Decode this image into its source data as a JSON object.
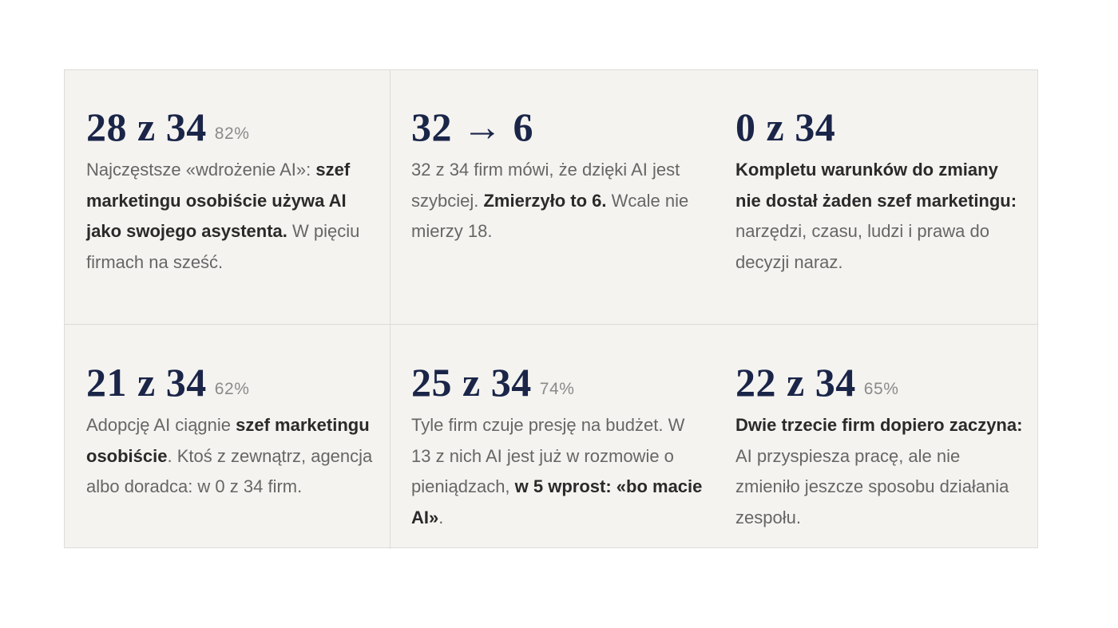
{
  "cards": [
    {
      "stat": "28 z 34",
      "percent": "82%",
      "t1": "Najczęstsze «wdrożenie AI»: ",
      "b1": "szef marketingu osobiście używa AI jako swojego asystenta.",
      "t2": " W pięciu firmach na sześć."
    },
    {
      "stat": "32 → 6",
      "percent": "",
      "t1": "32 z 34 firm mówi, że dzięki AI jest szybciej. ",
      "b1": "Zmierzyło to 6.",
      "t2": " Wcale nie mierzy 18."
    },
    {
      "stat": "0 z 34",
      "percent": "",
      "t1": "",
      "b1": "Kompletu warunków do zmiany nie dostał żaden szef marketingu:",
      "t2": " narzędzi, czasu, ludzi i prawa do decyzji naraz."
    },
    {
      "stat": "21 z 34",
      "percent": "62%",
      "t1": "Adopcję AI ciągnie ",
      "b1": "szef marketingu osobiście",
      "t2": ". Ktoś z zewnątrz, agencja albo doradca: w 0 z 34 firm."
    },
    {
      "stat": "25 z 34",
      "percent": "74%",
      "t1": "Tyle firm czuje presję na budżet. W 13 z nich AI jest już w rozmowie o pieniądzach, ",
      "b1": "w 5 wprost: «bo macie AI»",
      "t2": "."
    },
    {
      "stat": "22 z 34",
      "percent": "65%",
      "t1": "",
      "b1": "Dwie trzecie firm dopiero zaczyna:",
      "t2": " AI przyspiesza pracę, ale nie zmieniło jeszcze sposobu działania zespołu."
    }
  ]
}
